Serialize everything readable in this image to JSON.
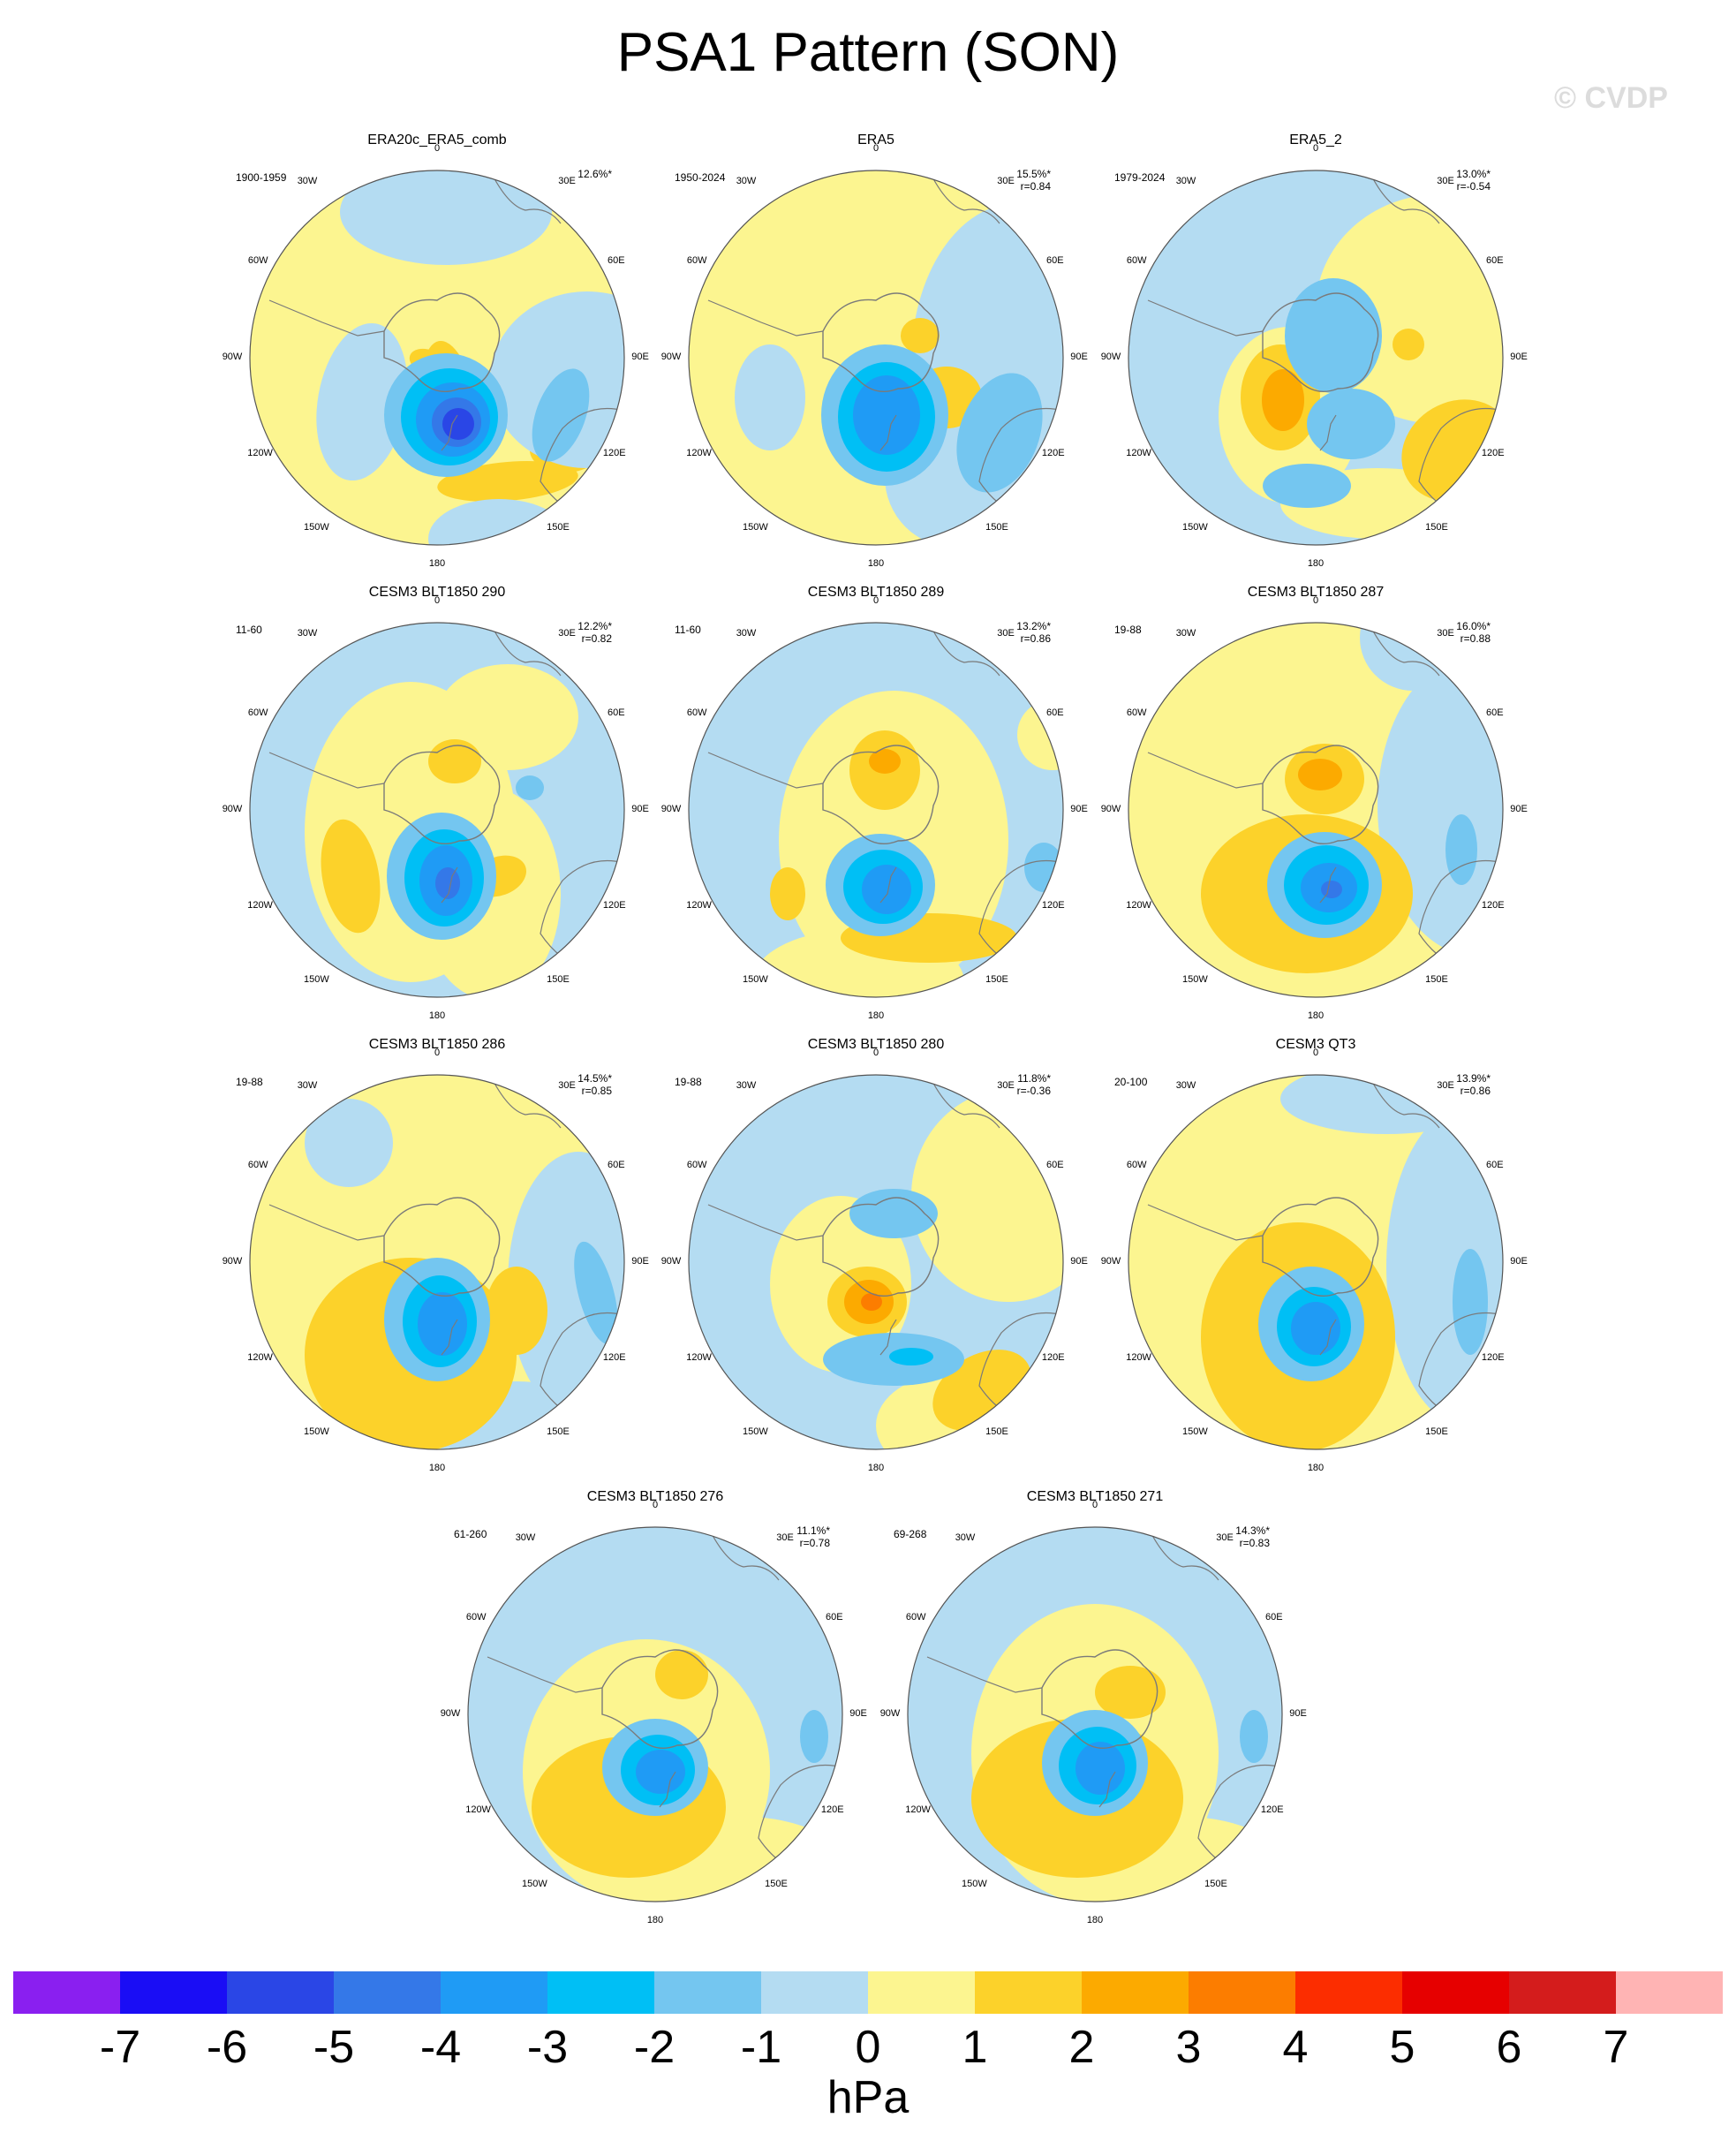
{
  "title": "PSA1 Pattern (SON)",
  "watermark": "© CVDP",
  "lon_labels": [
    "0",
    "30E",
    "60E",
    "90E",
    "120E",
    "150E",
    "180",
    "150W",
    "120W",
    "90W",
    "60W",
    "30W"
  ],
  "colors": {
    "n7": "#8a1ff0",
    "n6": "#1a0df5",
    "n5": "#2a46e6",
    "n4": "#3478e8",
    "n3": "#1f9bf5",
    "n2": "#00bff5",
    "n1": "#74c6f0",
    "n0": "#b4dcf2",
    "p0": "#fcf590",
    "p1": "#fcd22a",
    "p2": "#fcaa00",
    "p3": "#fc7d00",
    "p4": "#fc2d00",
    "p5": "#e60000",
    "p6": "#d41c1c",
    "p7": "#ffb4b4",
    "coast": "#7a7a7a",
    "rim": "#555555"
  },
  "panels": [
    {
      "title": "ERA20c_ERA5_comb",
      "years": "1900-1959",
      "pct": "12.6%*",
      "r": "",
      "bg": "p0",
      "blobs": [
        [
          "p1",
          300,
          260,
          48,
          36,
          10
        ],
        [
          "p1",
          175,
          310,
          30,
          75,
          -10
        ],
        [
          "p1",
          240,
          395,
          80,
          22,
          -5
        ],
        [
          "p1",
          305,
          360,
          40,
          25,
          0
        ],
        [
          "p1",
          150,
          260,
          22,
          14,
          20
        ],
        [
          "n0",
          170,
          90,
          120,
          60,
          0
        ],
        [
          "n0",
          330,
          280,
          110,
          100,
          0
        ],
        [
          "n0",
          75,
          305,
          50,
          90,
          10
        ],
        [
          "n0",
          230,
          460,
          80,
          45,
          0
        ],
        [
          "n1",
          170,
          320,
          70,
          70,
          0
        ],
        [
          "n1",
          300,
          320,
          28,
          55,
          20
        ],
        [
          "n2",
          174,
          322,
          55,
          55,
          0
        ],
        [
          "n3",
          178,
          325,
          42,
          42,
          0
        ],
        [
          "n4",
          182,
          328,
          28,
          28,
          0
        ],
        [
          "n5",
          184,
          330,
          18,
          18,
          0
        ]
      ]
    },
    {
      "title": "ERA5",
      "years": "1950-2024",
      "pct": "15.5%*",
      "r": "r=0.84",
      "bg": "p0",
      "blobs": [
        [
          "n0",
          320,
          260,
          120,
          180,
          0
        ],
        [
          "n0",
          40,
          300,
          40,
          60,
          0
        ],
        [
          "n0",
          250,
          390,
          80,
          80,
          0
        ],
        [
          "p1",
          210,
          230,
          22,
          20,
          0
        ],
        [
          "p1",
          240,
          300,
          40,
          35,
          0
        ],
        [
          "n1",
          300,
          340,
          45,
          70,
          20
        ],
        [
          "n1",
          170,
          320,
          72,
          80,
          0
        ],
        [
          "n2",
          172,
          322,
          55,
          62,
          0
        ],
        [
          "n3",
          172,
          320,
          38,
          45,
          0
        ]
      ]
    },
    {
      "title": "ERA5_2",
      "years": "1979-2024",
      "pct": "13.0%*",
      "r": "r=-0.54",
      "bg": "n0",
      "blobs": [
        [
          "p0",
          300,
          200,
          140,
          130,
          0
        ],
        [
          "p0",
          130,
          320,
          80,
          100,
          0
        ],
        [
          "p0",
          230,
          420,
          110,
          40,
          0
        ],
        [
          "p1",
          120,
          300,
          45,
          60,
          0
        ],
        [
          "p2",
          123,
          303,
          24,
          35,
          0
        ],
        [
          "p1",
          320,
          360,
          65,
          55,
          -30
        ],
        [
          "p1",
          265,
          240,
          18,
          18,
          0
        ],
        [
          "n1",
          180,
          230,
          55,
          65,
          0
        ],
        [
          "n1",
          200,
          330,
          50,
          40,
          0
        ],
        [
          "n1",
          150,
          400,
          50,
          25,
          0
        ]
      ]
    },
    {
      "title": "CESM3 BLT1850 290",
      "years": "11-60",
      "pct": "12.2%*",
      "r": "r=0.82",
      "bg": "n0",
      "blobs": [
        [
          "p0",
          130,
          280,
          120,
          170,
          0
        ],
        [
          "p0",
          220,
          350,
          80,
          120,
          0
        ],
        [
          "p0",
          240,
          150,
          80,
          60,
          0
        ],
        [
          "p1",
          62,
          330,
          32,
          65,
          -10
        ],
        [
          "p1",
          180,
          200,
          30,
          25,
          0
        ],
        [
          "p1",
          230,
          330,
          32,
          22,
          -20
        ],
        [
          "n1",
          165,
          330,
          62,
          72,
          0
        ],
        [
          "n1",
          265,
          230,
          16,
          14,
          0
        ],
        [
          "n2",
          168,
          332,
          45,
          55,
          0
        ],
        [
          "n3",
          170,
          335,
          30,
          40,
          0
        ],
        [
          "n4",
          172,
          338,
          14,
          18,
          0
        ]
      ]
    },
    {
      "title": "CESM3 BLT1850 289",
      "years": "11-60",
      "pct": "13.2%*",
      "r": "r=0.86",
      "bg": "n0",
      "blobs": [
        [
          "p0",
          180,
          290,
          130,
          170,
          0
        ],
        [
          "p0",
          140,
          450,
          120,
          60,
          0
        ],
        [
          "p0",
          360,
          170,
          40,
          40,
          0
        ],
        [
          "p1",
          170,
          210,
          40,
          45,
          0
        ],
        [
          "p2",
          170,
          200,
          18,
          14,
          0
        ],
        [
          "p1",
          220,
          400,
          100,
          28,
          0
        ],
        [
          "p1",
          60,
          350,
          20,
          30,
          0
        ],
        [
          "n1",
          165,
          340,
          62,
          58,
          0
        ],
        [
          "n1",
          350,
          320,
          22,
          28,
          0
        ],
        [
          "n2",
          168,
          342,
          45,
          42,
          0
        ],
        [
          "n3",
          172,
          345,
          28,
          28,
          0
        ]
      ]
    },
    {
      "title": "CESM3 BLT1850 287",
      "years": "19-88",
      "pct": "16.0%*",
      "r": "r=0.88",
      "bg": "p0",
      "blobs": [
        [
          "n0",
          340,
          250,
          110,
          170,
          0
        ],
        [
          "n0",
          270,
          60,
          60,
          60,
          0
        ],
        [
          "p1",
          170,
          220,
          45,
          40,
          0
        ],
        [
          "p2",
          165,
          215,
          25,
          18,
          0
        ],
        [
          "p1",
          150,
          350,
          120,
          90,
          0
        ],
        [
          "n1",
          170,
          340,
          65,
          60,
          0
        ],
        [
          "n1",
          325,
          300,
          18,
          40,
          0
        ],
        [
          "n2",
          172,
          340,
          48,
          45,
          0
        ],
        [
          "n3",
          175,
          343,
          32,
          28,
          0
        ],
        [
          "n4",
          178,
          345,
          12,
          10,
          0
        ]
      ]
    },
    {
      "title": "CESM3 BLT1850 286",
      "years": "19-88",
      "pct": "14.5%*",
      "r": "r=0.85",
      "bg": "p0",
      "blobs": [
        [
          "n0",
          320,
          280,
          80,
          150,
          0
        ],
        [
          "n0",
          250,
          440,
          100,
          50,
          0
        ],
        [
          "n0",
          60,
          120,
          50,
          50,
          0
        ],
        [
          "p1",
          130,
          360,
          120,
          110,
          0
        ],
        [
          "p1",
          250,
          310,
          35,
          50,
          0
        ],
        [
          "n1",
          160,
          320,
          60,
          70,
          0
        ],
        [
          "n1",
          340,
          290,
          20,
          60,
          -15
        ],
        [
          "n2",
          163,
          322,
          42,
          52,
          0
        ],
        [
          "n3",
          166,
          325,
          28,
          36,
          0
        ]
      ]
    },
    {
      "title": "CESM3 BLT1850 280",
      "years": "19-88",
      "pct": "11.8%*",
      "r": "r=-0.36",
      "bg": "n0",
      "blobs": [
        [
          "p0",
          310,
          180,
          110,
          120,
          0
        ],
        [
          "p0",
          120,
          280,
          80,
          100,
          0
        ],
        [
          "p0",
          250,
          440,
          90,
          60,
          0
        ],
        [
          "p1",
          150,
          300,
          45,
          40,
          0
        ],
        [
          "p2",
          152,
          300,
          28,
          25,
          0
        ],
        [
          "p3",
          155,
          300,
          12,
          10,
          0
        ],
        [
          "p1",
          280,
          400,
          60,
          40,
          -30
        ],
        [
          "n1",
          180,
          200,
          50,
          28,
          0
        ],
        [
          "n1",
          180,
          365,
          80,
          30,
          0
        ],
        [
          "n2",
          200,
          362,
          25,
          10,
          0
        ]
      ]
    },
    {
      "title": "CESM3 QT3",
      "years": "20-100",
      "pct": "13.9%*",
      "r": "r=0.86",
      "bg": "p0",
      "blobs": [
        [
          "n0",
          330,
          260,
          90,
          180,
          0
        ],
        [
          "n0",
          240,
          70,
          120,
          40,
          0
        ],
        [
          "p1",
          140,
          340,
          110,
          130,
          0
        ],
        [
          "n1",
          155,
          325,
          60,
          65,
          0
        ],
        [
          "n1",
          335,
          300,
          20,
          60,
          0
        ],
        [
          "n2",
          158,
          328,
          42,
          45,
          0
        ],
        [
          "n3",
          160,
          330,
          28,
          30,
          0
        ]
      ]
    },
    {
      "title": "CESM3 BLT1850 276",
      "years": "61-260",
      "pct": "11.1%*",
      "r": "r=0.78",
      "bg": "n0",
      "blobs": [
        [
          "p0",
          150,
          320,
          140,
          150,
          0
        ],
        [
          "p0",
          250,
          420,
          120,
          50,
          0
        ],
        [
          "p1",
          130,
          360,
          110,
          80,
          0
        ],
        [
          "p1",
          190,
          210,
          30,
          28,
          0
        ],
        [
          "n1",
          160,
          315,
          60,
          55,
          0
        ],
        [
          "n1",
          340,
          280,
          16,
          30,
          0
        ],
        [
          "n2",
          163,
          318,
          42,
          40,
          0
        ],
        [
          "n3",
          166,
          320,
          28,
          25,
          0
        ]
      ]
    },
    {
      "title": "CESM3 BLT1850 271",
      "years": "69-268",
      "pct": "14.3%*",
      "r": "r=0.83",
      "bg": "n0",
      "blobs": [
        [
          "p0",
          160,
          300,
          140,
          170,
          0
        ],
        [
          "p0",
          250,
          420,
          120,
          50,
          0
        ],
        [
          "p1",
          140,
          350,
          120,
          90,
          0
        ],
        [
          "p1",
          200,
          230,
          40,
          30,
          0
        ],
        [
          "n1",
          160,
          310,
          60,
          60,
          0
        ],
        [
          "n1",
          340,
          280,
          16,
          30,
          0
        ],
        [
          "n2",
          163,
          313,
          44,
          44,
          0
        ],
        [
          "n3",
          166,
          316,
          28,
          30,
          0
        ]
      ]
    }
  ],
  "colorbar": {
    "units": "hPa",
    "labels": [
      "-7",
      "-6",
      "-5",
      "-4",
      "-3",
      "-2",
      "-1",
      "0",
      "1",
      "2",
      "3",
      "4",
      "5",
      "6",
      "7"
    ],
    "bins": [
      "n7",
      "n6",
      "n5",
      "n4",
      "n3",
      "n2",
      "n1",
      "n0",
      "p0",
      "p1",
      "p2",
      "p3",
      "p4",
      "p5",
      "p6",
      "p7"
    ]
  }
}
